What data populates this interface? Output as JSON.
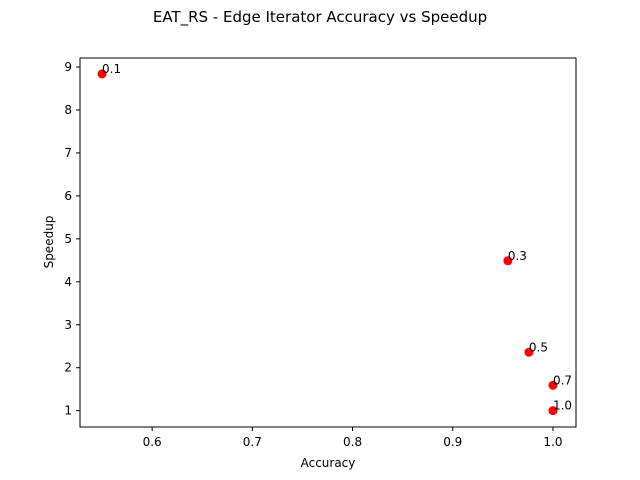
{
  "chart_data": {
    "type": "scatter",
    "title": "EAT_RS - Edge Iterator Accuracy vs Speedup",
    "xlabel": "Accuracy",
    "ylabel": "Speedup",
    "xlim": [
      0.528,
      1.023
    ],
    "ylim": [
      0.62,
      9.21
    ],
    "xticks": [
      0.6,
      0.7,
      0.8,
      0.9,
      1.0
    ],
    "xtick_labels": [
      "0.6",
      "0.7",
      "0.8",
      "0.9",
      "1.0"
    ],
    "yticks": [
      1,
      2,
      3,
      4,
      5,
      6,
      7,
      8,
      9
    ],
    "ytick_labels": [
      "1",
      "2",
      "3",
      "4",
      "5",
      "6",
      "7",
      "8",
      "9"
    ],
    "grid": false,
    "legend": "none",
    "marker_color": "#ff0000",
    "points": [
      {
        "x": 0.55,
        "y": 8.84,
        "label": "0.1"
      },
      {
        "x": 0.955,
        "y": 4.49,
        "label": "0.3"
      },
      {
        "x": 0.976,
        "y": 2.36,
        "label": "0.5"
      },
      {
        "x": 1.0,
        "y": 1.59,
        "label": "0.7"
      },
      {
        "x": 1.0,
        "y": 1.0,
        "label": "1.0"
      }
    ]
  }
}
